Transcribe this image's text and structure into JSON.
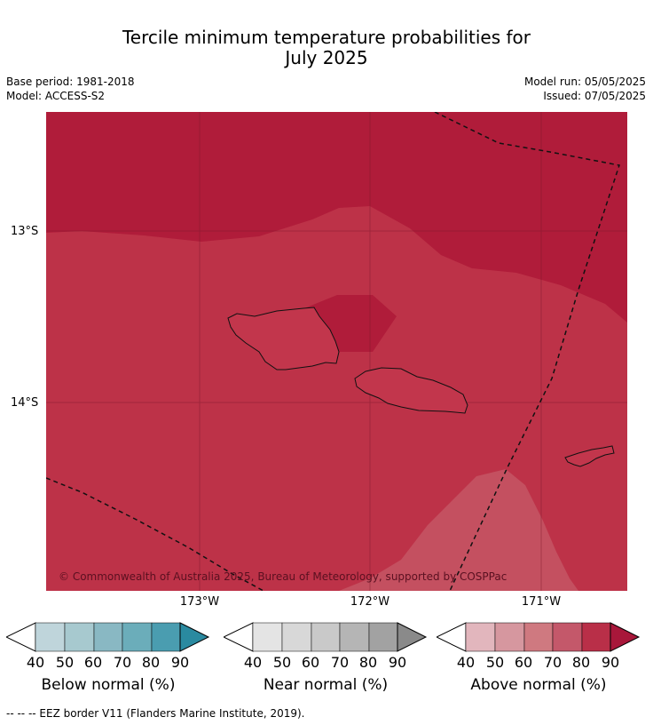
{
  "title_line1": "Tercile minimum temperature probabilities for",
  "title_line2": "July 2025",
  "meta": {
    "base_period": "Base period: 1981-2018",
    "model": "Model: ACCESS-S2",
    "model_run": "Model run: 05/05/2025",
    "issued": "Issued: 07/05/2025"
  },
  "map": {
    "copyright": "© Commonwealth of Australia 2025, Bureau of Meteorology, supported by COSPPac",
    "lat_labels": [
      "13°S",
      "14°S"
    ],
    "lon_labels": [
      "173°W",
      "172°W",
      "171°W"
    ],
    "region_colors": {
      "above_90": "#b01c3a",
      "above_80": "#bd3248",
      "above_70": "#c45060"
    }
  },
  "colorbars": [
    {
      "label": "Below normal (%)",
      "ticks": [
        "40",
        "50",
        "60",
        "70",
        "80",
        "90"
      ],
      "colors": [
        "#bfd5db",
        "#a7c9cf",
        "#89b8c3",
        "#6badba",
        "#4a9db0",
        "#2a8aa0"
      ]
    },
    {
      "label": "Near normal (%)",
      "ticks": [
        "40",
        "50",
        "60",
        "70",
        "80",
        "90"
      ],
      "colors": [
        "#e4e4e4",
        "#d8d8d8",
        "#c9c9c9",
        "#b5b5b5",
        "#a2a2a2",
        "#8a8a8a"
      ]
    },
    {
      "label": "Above normal (%)",
      "ticks": [
        "40",
        "50",
        "60",
        "70",
        "80",
        "90"
      ],
      "colors": [
        "#e2b6bd",
        "#d6979f",
        "#cf7980",
        "#c4586a",
        "#b92f48",
        "#a8173a"
      ]
    }
  ],
  "footer": "--  --  -- EEZ border V11 (Flanders Marine Institute, 2019)."
}
